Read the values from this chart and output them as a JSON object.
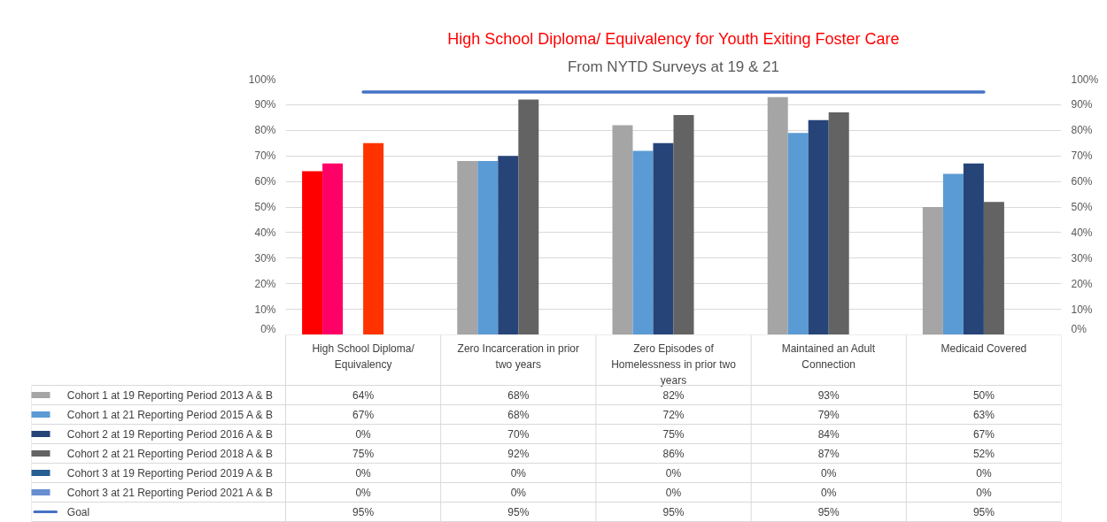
{
  "chart_data": {
    "type": "bar",
    "title": "High School Diploma/ Equivalency for Youth Exiting Foster Care",
    "subtitle": "From NYTD Surveys at 19 & 21",
    "categories": [
      "High School Diploma/ Equivalency",
      "Zero Incarceration in prior two years",
      "Zero Episodes of Homelessness in prior two years",
      "Maintained an Adult Connection",
      "Medicaid Covered"
    ],
    "ylim": [
      0,
      100
    ],
    "yticks": [
      {
        "value": 0,
        "label": "0%"
      },
      {
        "value": 10,
        "label": "10%"
      },
      {
        "value": 20,
        "label": "20%"
      },
      {
        "value": 30,
        "label": "30%"
      },
      {
        "value": 40,
        "label": "40%"
      },
      {
        "value": 50,
        "label": "50%"
      },
      {
        "value": 60,
        "label": "60%"
      },
      {
        "value": 70,
        "label": "70%"
      },
      {
        "value": 80,
        "label": "80%"
      },
      {
        "value": 90,
        "label": "90%"
      },
      {
        "value": 100,
        "label": "100%"
      }
    ],
    "y2lim": [
      0,
      100
    ],
    "y2ticks": [
      {
        "value": 0,
        "label": "0%"
      },
      {
        "value": 10,
        "label": "10%"
      },
      {
        "value": 20,
        "label": "20%"
      },
      {
        "value": 30,
        "label": "30%"
      },
      {
        "value": 40,
        "label": "40%"
      },
      {
        "value": 50,
        "label": "50%"
      },
      {
        "value": 60,
        "label": "60%"
      },
      {
        "value": 70,
        "label": "70%"
      },
      {
        "value": 80,
        "label": "80%"
      },
      {
        "value": 90,
        "label": "90%"
      },
      {
        "value": 100,
        "label": "100%"
      }
    ],
    "grid": "y",
    "legend": "bottom",
    "series": [
      {
        "name": "Cohort 1 at 19 Reporting Period 2013 A & B",
        "color": "#a5a5a5",
        "colors": [
          "#ff0000",
          "#a5a5a5",
          "#a5a5a5",
          "#a5a5a5",
          "#a5a5a5"
        ],
        "values": [
          64,
          68,
          82,
          93,
          50
        ],
        "value_labels": [
          "64%",
          "68%",
          "82%",
          "93%",
          "50%"
        ]
      },
      {
        "name": "Cohort 1 at 21 Reporting Period 2015 A & B",
        "color": "#5b9bd5",
        "colors": [
          "#ff0066",
          "#5b9bd5",
          "#5b9bd5",
          "#5b9bd5",
          "#5b9bd5"
        ],
        "values": [
          67,
          68,
          72,
          79,
          63
        ],
        "value_labels": [
          "67%",
          "68%",
          "72%",
          "79%",
          "63%"
        ]
      },
      {
        "name": "Cohort 2 at 19 Reporting Period 2016 A & B",
        "color": "#264478",
        "values": [
          0,
          70,
          75,
          84,
          67
        ],
        "value_labels": [
          "0%",
          "70%",
          "75%",
          "84%",
          "67%"
        ]
      },
      {
        "name": "Cohort 2 at 21 Reporting Period 2018 A & B",
        "color": "#636363",
        "colors": [
          "#ff3300",
          "#636363",
          "#636363",
          "#636363",
          "#636363"
        ],
        "values": [
          75,
          92,
          86,
          87,
          52
        ],
        "value_labels": [
          "75%",
          "92%",
          "86%",
          "87%",
          "52%"
        ]
      },
      {
        "name": "Cohort 3 at 19 Reporting Period 2019 A & B",
        "color": "#255e91",
        "values": [
          0,
          0,
          0,
          0,
          0
        ],
        "value_labels": [
          "0%",
          "0%",
          "0%",
          "0%",
          "0%"
        ]
      },
      {
        "name": "Cohort 3 at 21 Reporting Period 2021 A & B",
        "color": "#698ed0",
        "values": [
          0,
          0,
          0,
          0,
          0
        ],
        "value_labels": [
          "0%",
          "0%",
          "0%",
          "0%",
          "0%"
        ]
      },
      {
        "name": "Goal",
        "type": "line",
        "color": "#4472c4",
        "values": [
          95,
          95,
          95,
          95,
          95
        ],
        "value_labels": [
          "95%",
          "95%",
          "95%",
          "95%",
          "95%"
        ]
      }
    ]
  }
}
